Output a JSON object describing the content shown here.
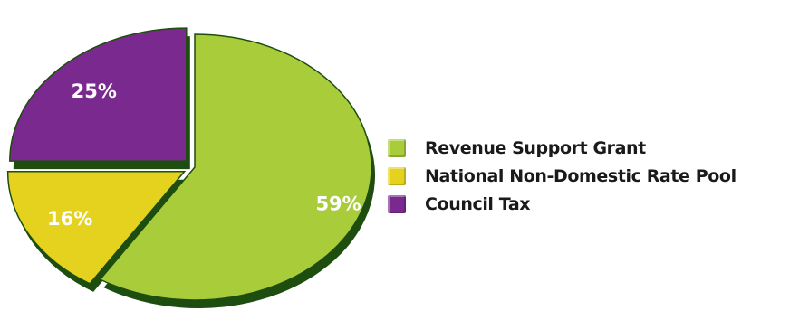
{
  "chart_data": {
    "type": "pie",
    "slices": [
      {
        "name": "Revenue Support Grant",
        "value": 59,
        "label": "59%",
        "color": "#a8cc3a",
        "exploded": false
      },
      {
        "name": "National Non-Domestic Rate Pool",
        "value": 16,
        "label": "16%",
        "color": "#e5d21e",
        "exploded": true
      },
      {
        "name": "Council Tax",
        "value": 25,
        "label": "25%",
        "color": "#7a2a8f",
        "exploded": true
      }
    ],
    "legend": {
      "position": "right",
      "items": [
        {
          "label": "Revenue Support Grant",
          "color": "#a8cc3a"
        },
        {
          "label": "National Non-Domestic Rate Pool",
          "color": "#e5d21e"
        },
        {
          "label": "Council Tax",
          "color": "#7a2a8f"
        }
      ]
    },
    "shadow_color": "#1e4d10"
  }
}
